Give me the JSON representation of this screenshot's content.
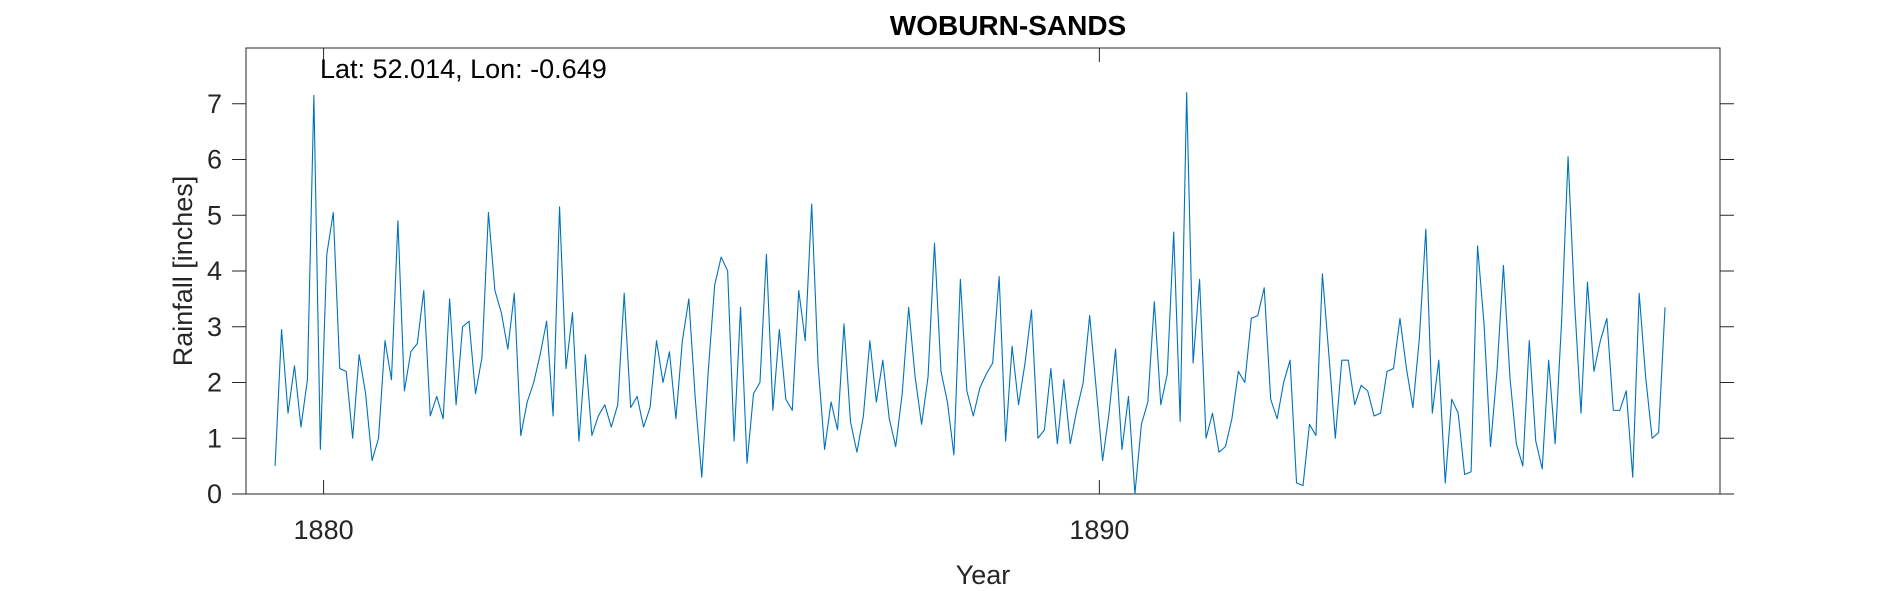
{
  "chart_data": {
    "type": "line",
    "title": "WOBURN-SANDS",
    "annotation": "Lat: 52.014, Lon: -0.649",
    "xlabel": "Year",
    "ylabel": "Rainfall [inches]",
    "xlim": [
      1879,
      1898
    ],
    "ylim": [
      0,
      8
    ],
    "x_ticks": [
      1880,
      1890
    ],
    "y_ticks": [
      0,
      1,
      2,
      3,
      4,
      5,
      6,
      7
    ],
    "grid": false,
    "series": [
      {
        "color": "#0072BD",
        "start_year": 1879.375,
        "step_years": 0.083333,
        "values": [
          0.5,
          2.95,
          1.45,
          2.3,
          1.2,
          2.05,
          7.15,
          0.8,
          4.3,
          5.05,
          2.25,
          2.2,
          1.0,
          2.5,
          1.8,
          0.6,
          1.0,
          2.75,
          2.05,
          4.9,
          1.85,
          2.55,
          2.7,
          3.65,
          1.4,
          1.75,
          1.35,
          3.5,
          1.6,
          3.0,
          3.1,
          1.8,
          2.45,
          5.05,
          3.65,
          3.25,
          2.6,
          3.6,
          1.05,
          1.65,
          2.0,
          2.5,
          3.1,
          1.4,
          5.15,
          2.25,
          3.25,
          0.95,
          2.5,
          1.05,
          1.4,
          1.6,
          1.2,
          1.6,
          3.6,
          1.55,
          1.75,
          1.2,
          1.55,
          2.75,
          2.0,
          2.55,
          1.35,
          2.75,
          3.5,
          1.7,
          0.3,
          2.2,
          3.75,
          4.25,
          4.0,
          0.95,
          3.35,
          0.55,
          1.8,
          2.0,
          4.3,
          1.5,
          2.95,
          1.7,
          1.5,
          3.65,
          2.75,
          5.2,
          2.3,
          0.8,
          1.65,
          1.15,
          3.05,
          1.3,
          0.75,
          1.4,
          2.75,
          1.65,
          2.4,
          1.35,
          0.85,
          1.8,
          3.35,
          2.1,
          1.25,
          2.1,
          4.5,
          2.2,
          1.65,
          0.7,
          3.85,
          1.85,
          1.4,
          1.9,
          2.15,
          2.35,
          3.9,
          0.95,
          2.65,
          1.6,
          2.35,
          3.3,
          1.0,
          1.15,
          2.25,
          0.9,
          2.05,
          0.9,
          1.5,
          2.0,
          3.2,
          1.9,
          0.6,
          1.45,
          2.6,
          0.8,
          1.75,
          0.0,
          1.25,
          1.65,
          3.45,
          1.6,
          2.15,
          4.7,
          1.3,
          7.2,
          2.35,
          3.85,
          1.0,
          1.45,
          0.75,
          0.85,
          1.35,
          2.2,
          2.0,
          3.15,
          3.2,
          3.7,
          1.7,
          1.35,
          2.0,
          2.4,
          0.2,
          0.15,
          1.25,
          1.05,
          3.95,
          2.5,
          1.0,
          2.4,
          2.4,
          1.6,
          1.95,
          1.85,
          1.4,
          1.45,
          2.2,
          2.25,
          3.15,
          2.25,
          1.55,
          2.8,
          4.75,
          1.45,
          2.4,
          0.2,
          1.7,
          1.45,
          0.35,
          0.4,
          4.45,
          3.05,
          0.85,
          2.2,
          4.1,
          2.1,
          0.9,
          0.5,
          2.75,
          0.95,
          0.45,
          2.4,
          0.9,
          3.1,
          6.05,
          3.45,
          1.45,
          3.8,
          2.2,
          2.75,
          3.15,
          1.5,
          1.5,
          1.85,
          0.3,
          3.6,
          2.1,
          1.0,
          1.1,
          3.35
        ]
      }
    ]
  }
}
